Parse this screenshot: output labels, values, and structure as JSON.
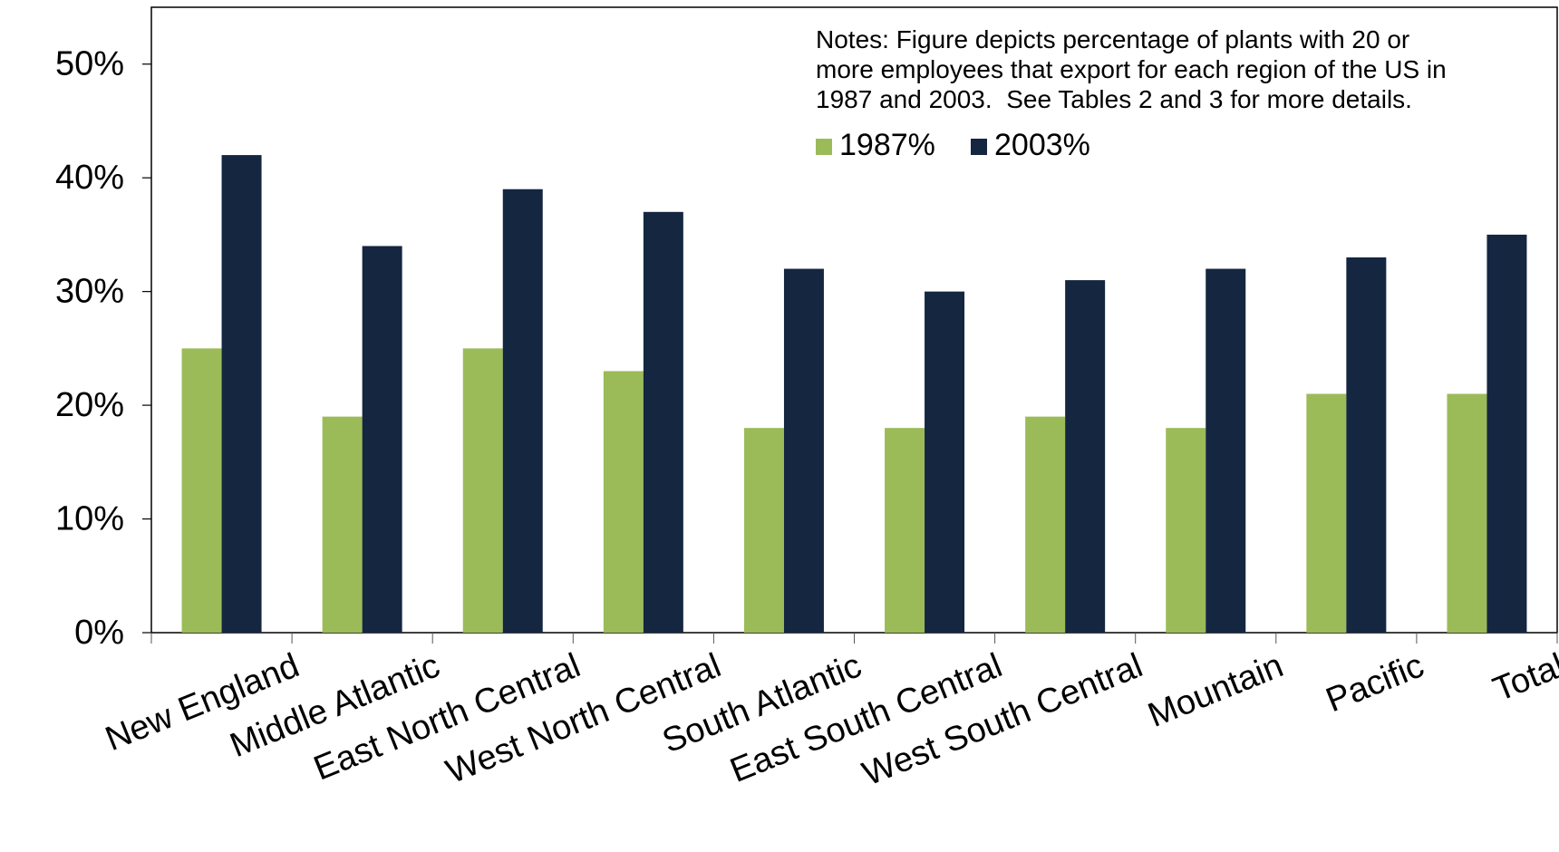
{
  "chart_data": {
    "type": "bar",
    "categories": [
      "New England",
      "Middle Atlantic",
      "East North Central",
      "West North Central",
      "South Atlantic",
      "East South Central",
      "West South Central",
      "Mountain",
      "Pacific",
      "Total"
    ],
    "series": [
      {
        "name": "1987%",
        "color": "#9bbb59",
        "values": [
          0.25,
          0.19,
          0.25,
          0.23,
          0.18,
          0.18,
          0.19,
          0.18,
          0.21,
          0.21
        ]
      },
      {
        "name": "2003%",
        "color": "#142640",
        "values": [
          0.42,
          0.34,
          0.39,
          0.37,
          0.32,
          0.3,
          0.31,
          0.32,
          0.33,
          0.35
        ]
      }
    ],
    "ylim": [
      0,
      0.55
    ],
    "yticks": [
      0,
      0.1,
      0.2,
      0.3,
      0.4,
      0.5
    ],
    "ytick_labels": [
      "0%",
      "10%",
      "20%",
      "30%",
      "40%",
      "50%"
    ],
    "title": "",
    "xlabel": "",
    "ylabel": "",
    "grid": false,
    "legend_position": "top-right, inside plot",
    "notes": "Notes: Figure depicts percentage of plants with 20 or more employees that export for each region of the US in 1987 and 2003.  See Tables 2 and 3 for more details."
  }
}
